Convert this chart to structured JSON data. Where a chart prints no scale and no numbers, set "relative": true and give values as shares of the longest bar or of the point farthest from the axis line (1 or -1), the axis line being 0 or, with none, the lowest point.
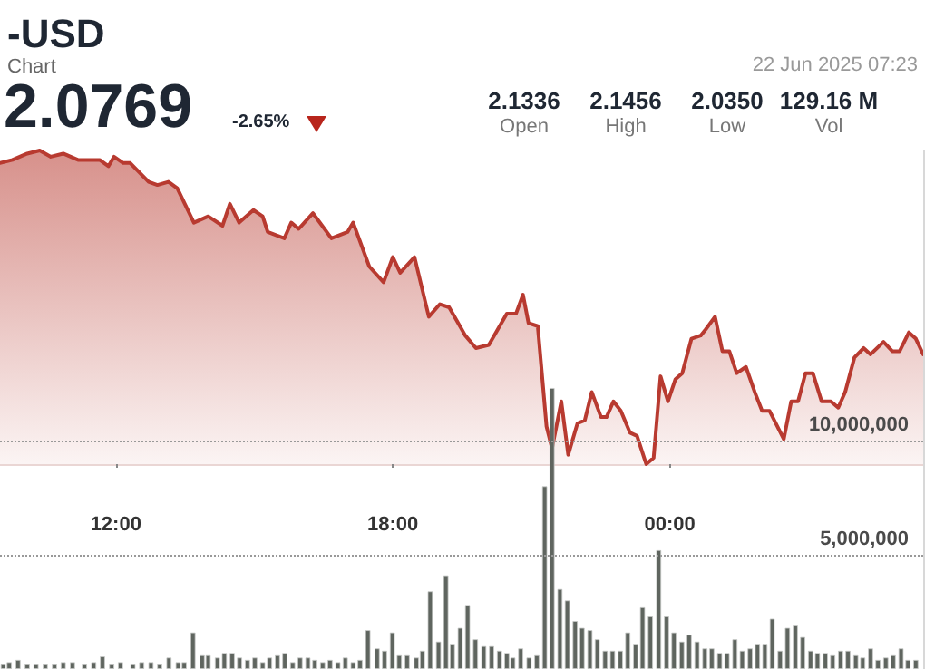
{
  "chart_data": [
    {
      "type": "area",
      "title": "-USD",
      "subtitle": "Chart",
      "annotations": [
        "2.0769",
        "-2.65%",
        "2.1336",
        "Open",
        "2.1456",
        "High",
        "2.0350",
        "Low",
        "129.16 M",
        "Vol",
        "22 Jun 2025 07:23"
      ],
      "relative": true,
      "color": "#b83a30",
      "marker": "none",
      "line_style": "solid",
      "tick_labels": "x",
      "xlim": [
        9.49,
        29.49
      ],
      "xticks": [
        {
          "value": 12,
          "label": "12:00"
        },
        {
          "value": 18,
          "label": "18:00"
        },
        {
          "value": 24,
          "label": "00:00"
        }
      ],
      "x": [
        9.49,
        9.76,
        10.08,
        10.35,
        10.59,
        10.86,
        11.18,
        11.65,
        11.84,
        11.96,
        12.16,
        12.31,
        12.71,
        12.9,
        13.14,
        13.33,
        13.69,
        14.0,
        14.31,
        14.47,
        14.67,
        14.98,
        15.18,
        15.29,
        15.65,
        15.8,
        15.96,
        16.27,
        16.67,
        17.02,
        17.14,
        17.49,
        17.8,
        18.0,
        18.16,
        18.47,
        18.78,
        19.02,
        19.22,
        19.57,
        19.8,
        20.08,
        20.47,
        20.67,
        20.82,
        20.94,
        21.14,
        21.33,
        21.45,
        21.65,
        21.8,
        22.0,
        22.16,
        22.31,
        22.51,
        22.63,
        22.78,
        22.94,
        23.14,
        23.29,
        23.49,
        23.65,
        23.8,
        23.96,
        24.12,
        24.27,
        24.47,
        24.67,
        24.78,
        24.98,
        25.14,
        25.29,
        25.45,
        25.65,
        25.84,
        26.0,
        26.16,
        26.47,
        26.63,
        26.78,
        26.94,
        27.1,
        27.29,
        27.49,
        27.65,
        27.8,
        28.0,
        28.2,
        28.35,
        28.63,
        28.82,
        28.98,
        29.18,
        29.33,
        29.49
      ],
      "values": [
        0.96,
        0.97,
        0.99,
        1,
        0.98,
        0.99,
        0.97,
        0.97,
        0.95,
        0.98,
        0.96,
        0.96,
        0.9,
        0.89,
        0.9,
        0.88,
        0.77,
        0.79,
        0.76,
        0.83,
        0.77,
        0.81,
        0.79,
        0.74,
        0.72,
        0.77,
        0.75,
        0.8,
        0.72,
        0.74,
        0.77,
        0.63,
        0.58,
        0.66,
        0.61,
        0.66,
        0.47,
        0.51,
        0.5,
        0.41,
        0.37,
        0.38,
        0.48,
        0.48,
        0.54,
        0.45,
        0.44,
        0.12,
        0.05,
        0.2,
        0.03,
        0.13,
        0.14,
        0.23,
        0.15,
        0.15,
        0.2,
        0.17,
        0.1,
        0.09,
        0,
        0.02,
        0.28,
        0.2,
        0.27,
        0.29,
        0.4,
        0.41,
        0.43,
        0.47,
        0.36,
        0.36,
        0.29,
        0.31,
        0.23,
        0.17,
        0.17,
        0.08,
        0.2,
        0.2,
        0.29,
        0.29,
        0.2,
        0.2,
        0.18,
        0.23,
        0.34,
        0.37,
        0.35,
        0.39,
        0.36,
        0.36,
        0.42,
        0.4,
        0.35
      ]
    },
    {
      "type": "bar",
      "color": "#5f655f",
      "grid": "y",
      "tick_labels": "y",
      "xlim": [
        9.49,
        29.49
      ],
      "ylim": [
        0,
        22700000
      ],
      "yticks": [
        {
          "value": 5000000,
          "label": "5,000,000"
        },
        {
          "value": 10000000,
          "label": "10,000,000"
        }
      ],
      "x": [
        9.56,
        9.69,
        9.88,
        10.08,
        10.27,
        10.47,
        10.67,
        10.86,
        11.06,
        11.32,
        11.52,
        11.71,
        11.91,
        12.1,
        12.37,
        12.56,
        12.76,
        12.95,
        13.15,
        13.35,
        13.48,
        13.67,
        13.87,
        14.0,
        14.2,
        14.35,
        14.52,
        14.68,
        14.85,
        15.01,
        15.18,
        15.33,
        15.5,
        15.66,
        15.83,
        15.99,
        16.16,
        16.31,
        16.48,
        16.64,
        16.81,
        16.97,
        17.14,
        17.29,
        17.46,
        17.66,
        17.82,
        17.99,
        18.14,
        18.31,
        18.51,
        18.64,
        18.81,
        18.99,
        19.15,
        19.29,
        19.46,
        19.62,
        19.79,
        19.97,
        20.14,
        20.31,
        20.47,
        20.6,
        20.77,
        20.95,
        21.12,
        21.29,
        21.45,
        21.62,
        21.78,
        21.95,
        22.1,
        22.27,
        22.43,
        22.6,
        22.76,
        22.93,
        23.09,
        23.26,
        23.41,
        23.58,
        23.76,
        23.93,
        24.09,
        24.26,
        24.42,
        24.59,
        24.76,
        24.91,
        25.08,
        25.24,
        25.41,
        25.57,
        25.74,
        25.9,
        26.06,
        26.22,
        26.39,
        26.55,
        26.72,
        26.88,
        27.05,
        27.2,
        27.37,
        27.53,
        27.7,
        27.86,
        28.03,
        28.18,
        28.35,
        28.51,
        28.68,
        28.84,
        29.01,
        29.16,
        29.33
      ],
      "values": [
        200000,
        300000,
        400000,
        200000,
        200000,
        200000,
        200000,
        300000,
        300000,
        200000,
        300000,
        550000,
        200000,
        300000,
        200000,
        300000,
        300000,
        200000,
        500000,
        300000,
        300000,
        1600000,
        600000,
        600000,
        500000,
        700000,
        700000,
        500000,
        400000,
        500000,
        300000,
        500000,
        600000,
        700000,
        300000,
        500000,
        500000,
        400000,
        300000,
        400000,
        300000,
        500000,
        300000,
        400000,
        1700000,
        900000,
        800000,
        1600000,
        600000,
        600000,
        500000,
        800000,
        3400000,
        1200000,
        4100000,
        1100000,
        1800000,
        2800000,
        1300000,
        1000000,
        1000000,
        800000,
        700000,
        500000,
        900000,
        500000,
        600000,
        8000000,
        12300000,
        3500000,
        3000000,
        2100000,
        1800000,
        1700000,
        1300000,
        800000,
        800000,
        800000,
        1600000,
        1100000,
        2700000,
        2300000,
        5200000,
        2300000,
        1600000,
        1200000,
        1500000,
        1200000,
        900000,
        900000,
        700000,
        700000,
        1300000,
        800000,
        900000,
        1100000,
        1100000,
        2200000,
        800000,
        1800000,
        1900000,
        1400000,
        800000,
        700000,
        700000,
        600000,
        800000,
        800000,
        600000,
        500000,
        900000,
        400000,
        500000,
        600000,
        900000,
        400000,
        400000
      ]
    }
  ]
}
